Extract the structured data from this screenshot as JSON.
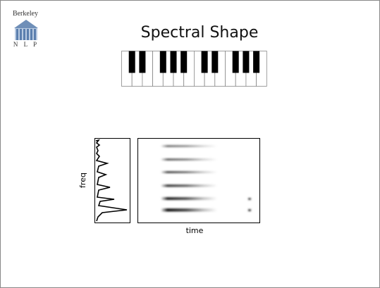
{
  "logo": {
    "name": "Berkeley",
    "letters": "N L P"
  },
  "title": "Spectral Shape",
  "figure": {
    "y_label": "freq",
    "x_label": "time"
  }
}
